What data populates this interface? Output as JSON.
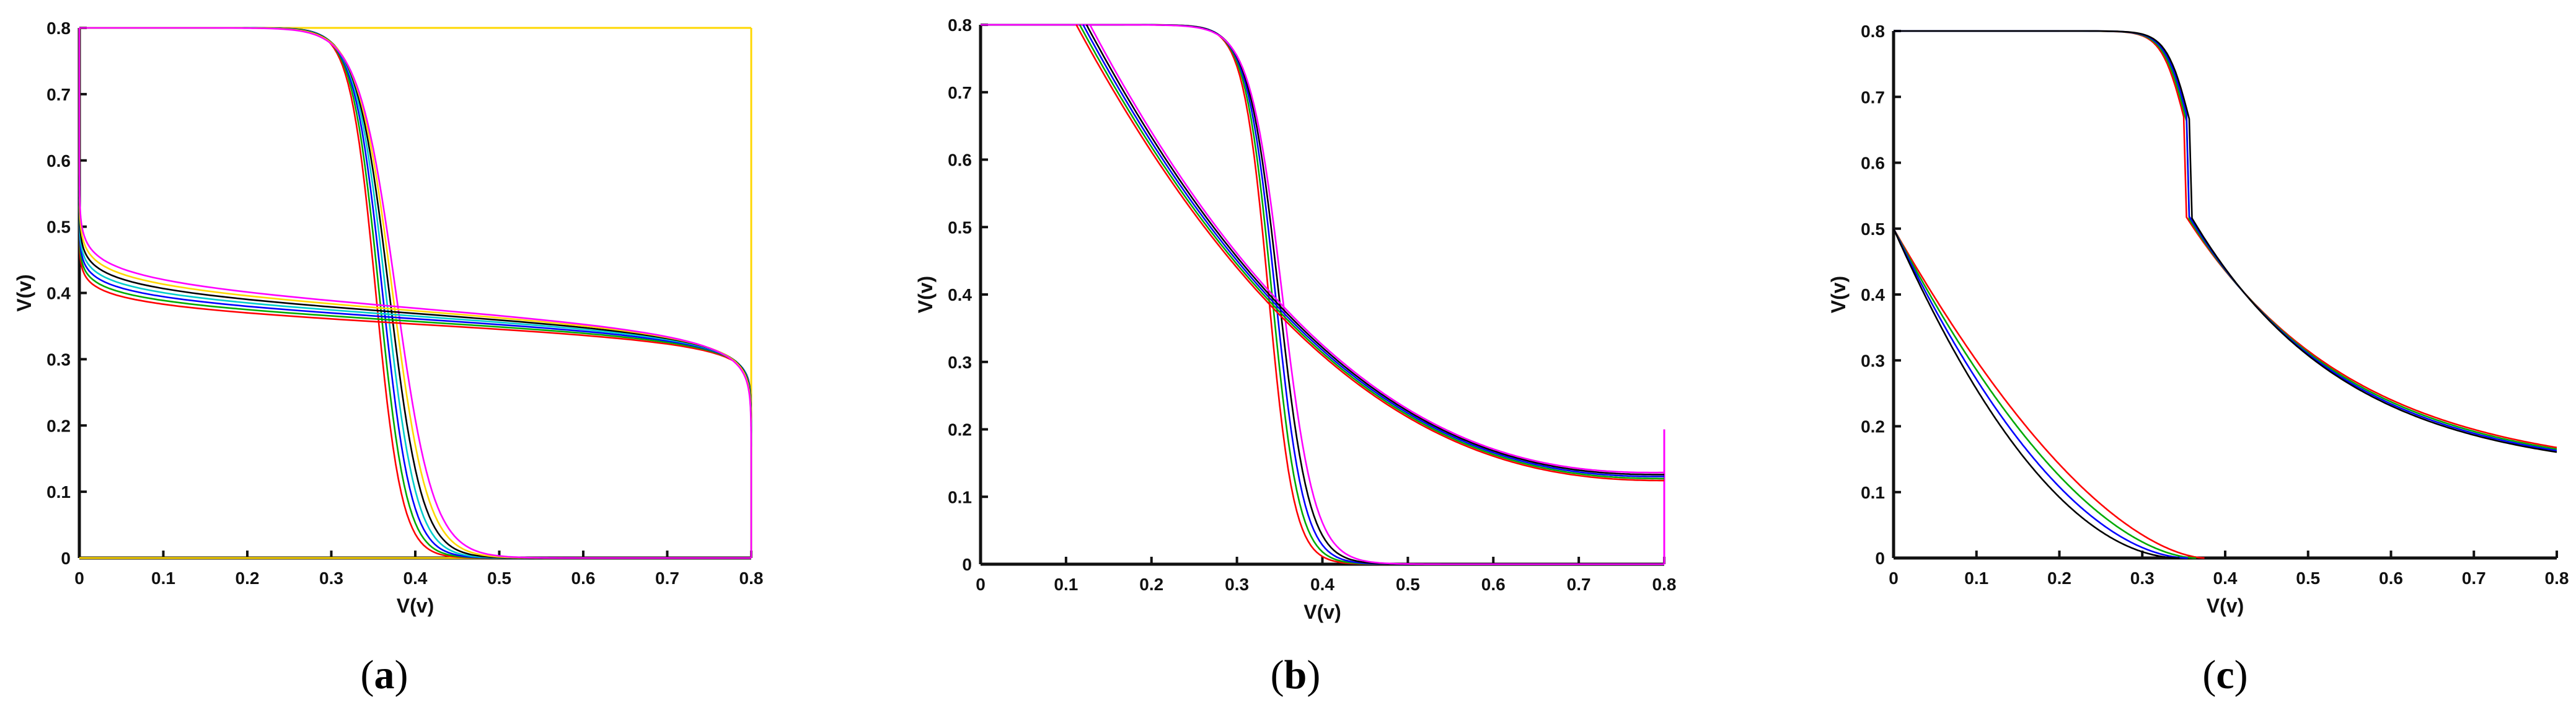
{
  "chart_data": [
    {
      "type": "line",
      "caption": "a",
      "xlabel": "V(v)",
      "ylabel": "V(v)",
      "xlim": [
        0,
        0.8
      ],
      "ylim": [
        0,
        0.8
      ],
      "xticks": [
        "0",
        "0.1",
        "0.2",
        "0.3",
        "0.4",
        "0.5",
        "0.6",
        "0.7",
        "0.8"
      ],
      "yticks": [
        "0",
        "0.1",
        "0.2",
        "0.3",
        "0.4",
        "0.5",
        "0.6",
        "0.7",
        "0.8"
      ],
      "colors": [
        "#ff0000",
        "#00aa00",
        "#0000ff",
        "#00cccc",
        "#000000",
        "#ffd700",
        "#ff00ff"
      ],
      "curves": [
        {
          "family": "S",
          "params": {
            "vdd": 0.8,
            "vm": 0.365,
            "g": 55
          },
          "spread": 0.014
        },
        {
          "family": "S",
          "params": {
            "vdd": 0.8,
            "vm": 0.365,
            "g": 55,
            "swap": true
          },
          "spread": 0.014
        }
      ],
      "extra_lines": [
        {
          "x": [
            0,
            0.8
          ],
          "y": [
            0.8,
            0.8
          ],
          "color": "#ffd700"
        },
        {
          "x": [
            0.8,
            0.8
          ],
          "y": [
            0,
            0.8
          ],
          "color": "#ffd700"
        },
        {
          "x": [
            0,
            0.8
          ],
          "y": [
            0.0,
            0.0
          ],
          "color": "#ffd700"
        }
      ]
    },
    {
      "type": "line",
      "caption": "b",
      "xlabel": "V(v)",
      "ylabel": "V(v)",
      "xlim": [
        0,
        0.8
      ],
      "ylim": [
        0,
        0.8
      ],
      "xticks": [
        "0",
        "0.1",
        "0.2",
        "0.3",
        "0.4",
        "0.5",
        "0.6",
        "0.7",
        "0.8"
      ],
      "yticks": [
        "0",
        "0.1",
        "0.2",
        "0.3",
        "0.4",
        "0.5",
        "0.6",
        "0.7",
        "0.8"
      ],
      "colors": [
        "#ff0000",
        "#00aa00",
        "#0000ff",
        "#000000",
        "#ff00ff"
      ],
      "curves": [
        {
          "family": "S",
          "params": {
            "vdd": 0.8,
            "vm": 0.345,
            "g": 60,
            "floor": 0.34
          },
          "spread": 0.01
        },
        {
          "family": "D",
          "params": {
            "x0": 0.12,
            "top": 0.8,
            "end": 0.13
          },
          "spread": 0.008
        }
      ],
      "extra_lines": [
        {
          "x": [
            0,
            0.12
          ],
          "y": [
            0.8,
            0.8
          ],
          "color": "#ff00ff"
        },
        {
          "x": [
            0.8,
            0.8
          ],
          "y": [
            0,
            0.2
          ],
          "color": "#ff00ff"
        }
      ]
    },
    {
      "type": "line",
      "caption": "c",
      "xlabel": "V(v)",
      "ylabel": "V(v)",
      "xlim": [
        0,
        0.8
      ],
      "ylim": [
        0,
        0.8
      ],
      "xticks": [
        "0",
        "0.1",
        "0.2",
        "0.3",
        "0.4",
        "0.5",
        "0.6",
        "0.7",
        "0.8"
      ],
      "yticks": [
        "0",
        "0.1",
        "0.2",
        "0.3",
        "0.4",
        "0.5",
        "0.6",
        "0.7",
        "0.8"
      ],
      "colors": [
        "#ff0000",
        "#00aa00",
        "#0000ff",
        "#000000"
      ],
      "curves": [
        {
          "family": "C",
          "params": {
            "vm": 0.355,
            "g": 70,
            "end": 0.125
          },
          "spread": 0.006
        },
        {
          "family": "E",
          "params": {
            "y0": 0.5,
            "x1": 0.36
          },
          "spread": 0.02
        }
      ],
      "extra_lines": [
        {
          "x": [
            0,
            0.2
          ],
          "y": [
            0.8,
            0.8
          ],
          "color": "#0000ff"
        }
      ]
    }
  ]
}
